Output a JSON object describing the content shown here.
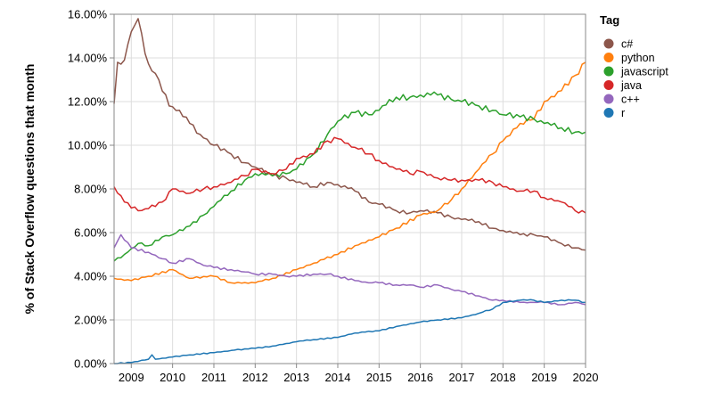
{
  "chart_data": {
    "type": "line",
    "ylabel": "% of Stack Overflow questions that month",
    "y_unit": "%",
    "ylim": [
      0,
      16
    ],
    "y_ticks": [
      "0.00%",
      "2.00%",
      "4.00%",
      "6.00%",
      "8.00%",
      "10.00%",
      "12.00%",
      "14.00%",
      "16.00%"
    ],
    "x_ticks": [
      "2009",
      "2010",
      "2011",
      "2012",
      "2013",
      "2014",
      "2015",
      "2016",
      "2017",
      "2018",
      "2019",
      "2020"
    ],
    "x_range": [
      "2008-08",
      "2020-01"
    ],
    "grid": true,
    "legend": {
      "title": "Tag",
      "placement": "right"
    },
    "series": [
      {
        "name": "c#",
        "color": "#8c564b",
        "points": [
          [
            "2008-08",
            11.9
          ],
          [
            "2008-09",
            13.8
          ],
          [
            "2008-11",
            13.9
          ],
          [
            "2009-01",
            15.2
          ],
          [
            "2009-03",
            15.8
          ],
          [
            "2009-05",
            14.2
          ],
          [
            "2009-07",
            13.4
          ],
          [
            "2009-09",
            13.0
          ],
          [
            "2009-12",
            11.8
          ],
          [
            "2010-03",
            11.6
          ],
          [
            "2010-06",
            11.0
          ],
          [
            "2010-09",
            10.5
          ],
          [
            "2011-01",
            10.0
          ],
          [
            "2011-06",
            9.6
          ],
          [
            "2011-10",
            9.2
          ],
          [
            "2012-01",
            9.0
          ],
          [
            "2012-06",
            8.6
          ],
          [
            "2012-10",
            8.5
          ],
          [
            "2013-01",
            8.3
          ],
          [
            "2013-06",
            8.1
          ],
          [
            "2013-10",
            8.3
          ],
          [
            "2014-01",
            8.2
          ],
          [
            "2014-06",
            7.9
          ],
          [
            "2014-10",
            7.4
          ],
          [
            "2015-01",
            7.3
          ],
          [
            "2015-06",
            7.0
          ],
          [
            "2015-10",
            6.9
          ],
          [
            "2016-01",
            7.0
          ],
          [
            "2016-06",
            6.9
          ],
          [
            "2016-10",
            6.7
          ],
          [
            "2017-01",
            6.6
          ],
          [
            "2017-06",
            6.5
          ],
          [
            "2017-10",
            6.2
          ],
          [
            "2018-01",
            6.1
          ],
          [
            "2018-06",
            5.9
          ],
          [
            "2018-10",
            5.9
          ],
          [
            "2019-01",
            5.8
          ],
          [
            "2019-06",
            5.5
          ],
          [
            "2019-10",
            5.3
          ],
          [
            "2020-01",
            5.2
          ]
        ]
      },
      {
        "name": "python",
        "color": "#ff7f0e",
        "points": [
          [
            "2008-08",
            3.9
          ],
          [
            "2009-01",
            3.8
          ],
          [
            "2009-06",
            4.0
          ],
          [
            "2010-01",
            4.3
          ],
          [
            "2010-06",
            3.9
          ],
          [
            "2011-01",
            4.0
          ],
          [
            "2011-06",
            3.7
          ],
          [
            "2012-01",
            3.7
          ],
          [
            "2012-06",
            3.9
          ],
          [
            "2013-01",
            4.3
          ],
          [
            "2013-06",
            4.6
          ],
          [
            "2014-01",
            5.0
          ],
          [
            "2014-06",
            5.4
          ],
          [
            "2015-01",
            5.8
          ],
          [
            "2015-06",
            6.2
          ],
          [
            "2016-01",
            6.8
          ],
          [
            "2016-06",
            7.0
          ],
          [
            "2016-10",
            7.5
          ],
          [
            "2017-01",
            8.0
          ],
          [
            "2017-06",
            8.9
          ],
          [
            "2017-10",
            9.6
          ],
          [
            "2018-01",
            10.2
          ],
          [
            "2018-06",
            11.0
          ],
          [
            "2018-10",
            11.2
          ],
          [
            "2019-01",
            12.0
          ],
          [
            "2019-06",
            12.5
          ],
          [
            "2019-10",
            13.2
          ],
          [
            "2020-01",
            13.8
          ]
        ]
      },
      {
        "name": "javascript",
        "color": "#2ca02c",
        "points": [
          [
            "2008-08",
            4.7
          ],
          [
            "2008-11",
            5.0
          ],
          [
            "2009-03",
            5.5
          ],
          [
            "2009-06",
            5.4
          ],
          [
            "2009-10",
            5.8
          ],
          [
            "2010-01",
            5.9
          ],
          [
            "2010-06",
            6.3
          ],
          [
            "2010-10",
            6.8
          ],
          [
            "2011-01",
            7.2
          ],
          [
            "2011-06",
            7.9
          ],
          [
            "2011-10",
            8.4
          ],
          [
            "2012-01",
            8.7
          ],
          [
            "2012-06",
            8.6
          ],
          [
            "2012-10",
            8.7
          ],
          [
            "2013-01",
            8.9
          ],
          [
            "2013-06",
            9.6
          ],
          [
            "2013-10",
            10.5
          ],
          [
            "2014-01",
            11.1
          ],
          [
            "2014-06",
            11.5
          ],
          [
            "2014-10",
            11.4
          ],
          [
            "2015-01",
            11.6
          ],
          [
            "2015-06",
            12.2
          ],
          [
            "2015-10",
            12.2
          ],
          [
            "2016-01",
            12.3
          ],
          [
            "2016-06",
            12.3
          ],
          [
            "2016-10",
            12.1
          ],
          [
            "2017-01",
            12.0
          ],
          [
            "2017-06",
            11.8
          ],
          [
            "2017-10",
            11.6
          ],
          [
            "2018-01",
            11.4
          ],
          [
            "2018-06",
            11.3
          ],
          [
            "2018-10",
            11.2
          ],
          [
            "2019-01",
            11.0
          ],
          [
            "2019-06",
            10.8
          ],
          [
            "2019-10",
            10.6
          ],
          [
            "2020-01",
            10.6
          ]
        ]
      },
      {
        "name": "java",
        "color": "#d62728",
        "points": [
          [
            "2008-08",
            8.1
          ],
          [
            "2008-11",
            7.4
          ],
          [
            "2009-03",
            7.0
          ],
          [
            "2009-06",
            7.1
          ],
          [
            "2009-10",
            7.4
          ],
          [
            "2010-01",
            8.0
          ],
          [
            "2010-06",
            7.8
          ],
          [
            "2010-10",
            8.0
          ],
          [
            "2011-01",
            8.1
          ],
          [
            "2011-06",
            8.3
          ],
          [
            "2011-10",
            8.6
          ],
          [
            "2012-01",
            8.9
          ],
          [
            "2012-06",
            8.7
          ],
          [
            "2012-10",
            8.9
          ],
          [
            "2013-01",
            9.4
          ],
          [
            "2013-06",
            9.6
          ],
          [
            "2013-10",
            10.2
          ],
          [
            "2014-01",
            10.3
          ],
          [
            "2014-06",
            9.9
          ],
          [
            "2014-10",
            9.6
          ],
          [
            "2015-01",
            9.3
          ],
          [
            "2015-06",
            8.9
          ],
          [
            "2015-10",
            8.7
          ],
          [
            "2016-01",
            8.8
          ],
          [
            "2016-06",
            8.5
          ],
          [
            "2016-10",
            8.4
          ],
          [
            "2017-01",
            8.4
          ],
          [
            "2017-06",
            8.4
          ],
          [
            "2017-10",
            8.3
          ],
          [
            "2018-01",
            8.1
          ],
          [
            "2018-06",
            7.9
          ],
          [
            "2018-10",
            7.9
          ],
          [
            "2019-01",
            7.6
          ],
          [
            "2019-06",
            7.4
          ],
          [
            "2019-10",
            7.0
          ],
          [
            "2020-01",
            6.9
          ]
        ]
      },
      {
        "name": "c++",
        "color": "#9467bd",
        "points": [
          [
            "2008-08",
            5.3
          ],
          [
            "2008-10",
            5.9
          ],
          [
            "2009-01",
            5.3
          ],
          [
            "2009-06",
            5.1
          ],
          [
            "2009-10",
            4.8
          ],
          [
            "2010-01",
            4.6
          ],
          [
            "2010-06",
            4.8
          ],
          [
            "2010-10",
            4.5
          ],
          [
            "2011-01",
            4.4
          ],
          [
            "2011-06",
            4.3
          ],
          [
            "2011-10",
            4.2
          ],
          [
            "2012-01",
            4.1
          ],
          [
            "2012-06",
            4.1
          ],
          [
            "2012-10",
            4.0
          ],
          [
            "2013-01",
            4.0
          ],
          [
            "2013-06",
            4.1
          ],
          [
            "2013-10",
            4.1
          ],
          [
            "2014-01",
            4.0
          ],
          [
            "2014-06",
            3.8
          ],
          [
            "2014-10",
            3.7
          ],
          [
            "2015-01",
            3.7
          ],
          [
            "2015-06",
            3.6
          ],
          [
            "2015-10",
            3.6
          ],
          [
            "2016-01",
            3.5
          ],
          [
            "2016-06",
            3.6
          ],
          [
            "2016-10",
            3.4
          ],
          [
            "2017-01",
            3.3
          ],
          [
            "2017-06",
            3.1
          ],
          [
            "2017-10",
            2.9
          ],
          [
            "2018-01",
            2.9
          ],
          [
            "2018-06",
            2.8
          ],
          [
            "2018-10",
            2.8
          ],
          [
            "2019-01",
            2.8
          ],
          [
            "2019-06",
            2.7
          ],
          [
            "2019-10",
            2.8
          ],
          [
            "2020-01",
            2.7
          ]
        ]
      },
      {
        "name": "r",
        "color": "#1f77b4",
        "points": [
          [
            "2008-08",
            0.0
          ],
          [
            "2009-01",
            0.05
          ],
          [
            "2009-06",
            0.2
          ],
          [
            "2009-07",
            0.4
          ],
          [
            "2009-08",
            0.2
          ],
          [
            "2010-01",
            0.3
          ],
          [
            "2010-06",
            0.4
          ],
          [
            "2011-01",
            0.5
          ],
          [
            "2011-06",
            0.6
          ],
          [
            "2012-01",
            0.7
          ],
          [
            "2012-06",
            0.8
          ],
          [
            "2013-01",
            1.0
          ],
          [
            "2013-06",
            1.1
          ],
          [
            "2014-01",
            1.2
          ],
          [
            "2014-06",
            1.4
          ],
          [
            "2015-01",
            1.5
          ],
          [
            "2015-06",
            1.7
          ],
          [
            "2016-01",
            1.9
          ],
          [
            "2016-06",
            2.0
          ],
          [
            "2017-01",
            2.1
          ],
          [
            "2017-06",
            2.3
          ],
          [
            "2017-10",
            2.5
          ],
          [
            "2018-01",
            2.8
          ],
          [
            "2018-06",
            2.9
          ],
          [
            "2018-10",
            2.9
          ],
          [
            "2019-01",
            2.8
          ],
          [
            "2019-06",
            2.9
          ],
          [
            "2019-10",
            2.9
          ],
          [
            "2020-01",
            2.8
          ]
        ]
      }
    ]
  }
}
